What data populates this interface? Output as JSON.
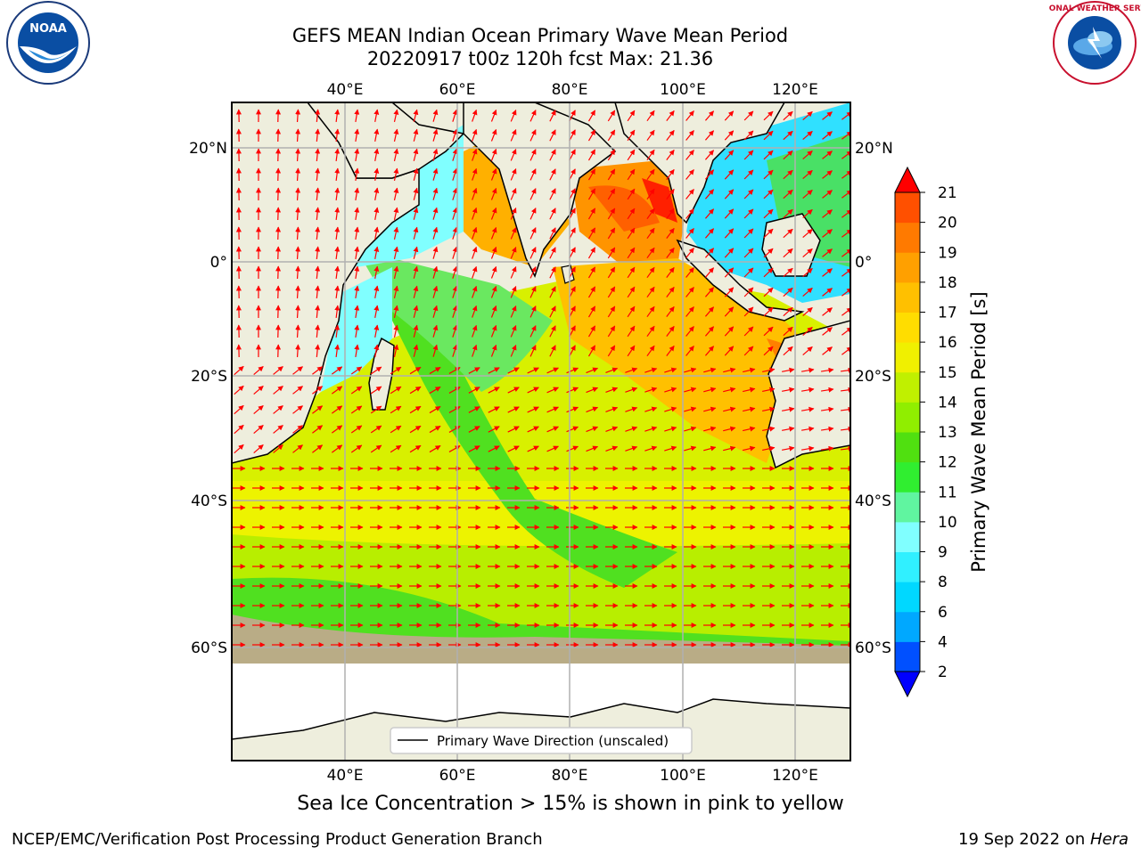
{
  "title": {
    "line1": "GEFS MEAN Indian Ocean Primary Wave Mean Period",
    "line2": "20220917 t00z 120h fcst   Max: 21.36"
  },
  "logos": {
    "noaa_text": "NOAA",
    "nws_text": "NATIONAL WEATHER SERVICE"
  },
  "axes": {
    "lon_labels": [
      "40°E",
      "60°E",
      "80°E",
      "100°E",
      "120°E"
    ],
    "lat_labels": [
      "20°N",
      "0°",
      "20°S",
      "40°S",
      "60°S"
    ]
  },
  "legend": {
    "label": "Primary Wave Direction (unscaled)"
  },
  "colorbar": {
    "label": "Primary Wave Mean Period [s]",
    "ticks": [
      "2",
      "4",
      "6",
      "8",
      "9",
      "10",
      "11",
      "12",
      "13",
      "14",
      "15",
      "16",
      "17",
      "18",
      "19",
      "20",
      "21"
    ],
    "colors": [
      "#0050ff",
      "#00a8ff",
      "#00d8ff",
      "#30f0ff",
      "#80ffff",
      "#60f5a0",
      "#30ee30",
      "#50e010",
      "#90ee00",
      "#c0f000",
      "#f0f000",
      "#ffdd00",
      "#ffc000",
      "#ffa000",
      "#ff7a00",
      "#ff5000",
      "#ff2000"
    ],
    "under_color": "#0000ff",
    "over_color": "#ff0000"
  },
  "subtitle": "Sea Ice Concentration > 15% is shown in pink to yellow",
  "footer": {
    "left": "NCEP/EMC/Verification Post Processing Product Generation Branch",
    "right_date": "19 Sep 2022 on ",
    "right_host": "Hera"
  }
}
